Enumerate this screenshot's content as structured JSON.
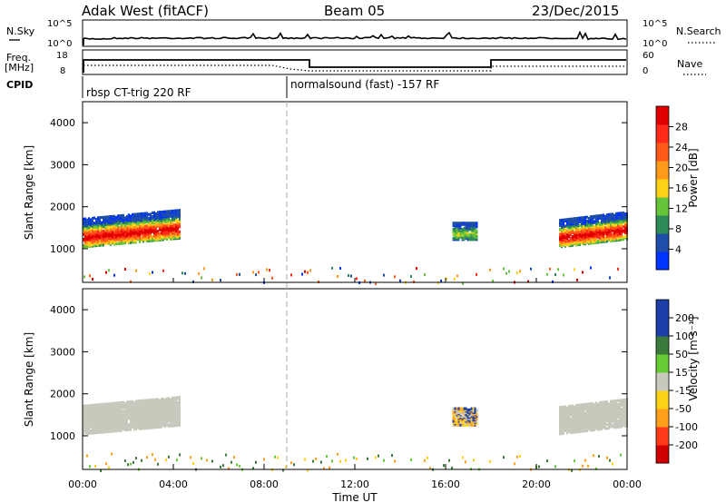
{
  "header": {
    "title": "Adak West (fitACF)",
    "beam": "Beam 05",
    "date": "23/Dec/2015"
  },
  "status_panels": {
    "nsky_label": "N.Sky",
    "nsearch_label": "N.Search",
    "n_ticks_left": [
      "10^5",
      "10^0"
    ],
    "n_ticks_right": [
      "10^5",
      "10^0"
    ],
    "freq_label_1": "Freq.",
    "freq_label_2": "[MHz]",
    "freq_ticks": [
      "18",
      "8"
    ],
    "nave_label": "Nave",
    "nave_ticks": [
      "60",
      "0"
    ],
    "cpid_label": "CPID",
    "cpid_segments": [
      {
        "start_hour": 0,
        "text": "rbsp CT-trig 220 RF"
      },
      {
        "start_hour": 9,
        "text": "normalsound (fast) -157 RF"
      }
    ]
  },
  "x_axis": {
    "label": "Time UT",
    "ticks": [
      "00:00",
      "04:00",
      "08:00",
      "12:00",
      "16:00",
      "20:00",
      "00:00"
    ],
    "range_hours": [
      0,
      24
    ]
  },
  "colors": {
    "power": [
      "#0033ff",
      "#1f4ea8",
      "#2e8b57",
      "#66c43a",
      "#ffd21a",
      "#ff9a1a",
      "#ff5a1a",
      "#ff2a1a",
      "#e00000"
    ],
    "velocity": {
      "pos_high": "#1f3fa8",
      "pos_mid": "#3c7a3c",
      "pos_low": "#66cc33",
      "ground": "#c8c8bd",
      "neg_low": "#ffd21a",
      "neg_mid": "#ff9f1a",
      "neg_high": "#ff3a1a",
      "neg_max": "#d00000"
    }
  },
  "chart_data": [
    {
      "type": "heatmap",
      "name": "power",
      "ylabel": "Slant Range [km]",
      "y_ticks": [
        "1000",
        "2000",
        "3000",
        "4000"
      ],
      "ylim": [
        200,
        4500
      ],
      "colorbar_label": "Power [dB]",
      "colorbar_ticks": [
        "4",
        "8",
        "12",
        "16",
        "20",
        "24",
        "28"
      ],
      "colorbar_range": [
        0,
        32
      ],
      "echo_regions": [
        {
          "hour_start": 0.0,
          "hour_end": 4.3,
          "range_start_km": 1050,
          "range_end_km": 2100,
          "peak_db": 28
        },
        {
          "hour_start": 16.3,
          "hour_end": 17.4,
          "range_start_km": 1200,
          "range_end_km": 1500,
          "peak_db": 12
        },
        {
          "hour_start": 21.0,
          "hour_end": 24.0,
          "range_start_km": 1050,
          "range_end_km": 2000,
          "peak_db": 28
        }
      ],
      "near_range_clutter_km": [
        200,
        600
      ]
    },
    {
      "type": "heatmap",
      "name": "velocity",
      "ylabel": "Slant Range [km]",
      "y_ticks": [
        "1000",
        "2000",
        "3000",
        "4000"
      ],
      "ylim": [
        200,
        4500
      ],
      "colorbar_label": "Velocity [m s⁻¹]",
      "colorbar_ticks": [
        "200",
        "100",
        "50",
        "15",
        "-15",
        "-50",
        "-100",
        "-200"
      ],
      "echo_regions": [
        {
          "hour_start": 0.0,
          "hour_end": 4.3,
          "range_start_km": 1050,
          "range_end_km": 2100,
          "velocity_class": "ground"
        },
        {
          "hour_start": 16.3,
          "hour_end": 17.4,
          "range_start_km": 1200,
          "range_end_km": 1500,
          "velocity_class": "mixed"
        },
        {
          "hour_start": 21.0,
          "hour_end": 24.0,
          "range_start_km": 1050,
          "range_end_km": 2000,
          "velocity_class": "ground"
        }
      ]
    }
  ]
}
